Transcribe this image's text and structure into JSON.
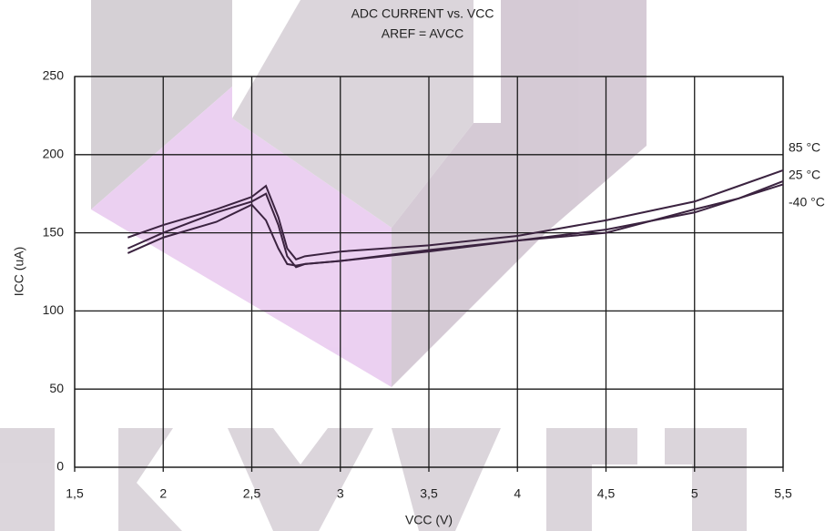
{
  "chart_data": {
    "type": "line",
    "title": "ADC CURRENT vs. VCC",
    "subtitle": "AREF = AVCC",
    "x_label": "VCC (V)",
    "y_label": "ICC (uA)",
    "x": [
      1.8,
      2.0,
      2.3,
      2.5,
      2.58,
      2.65,
      2.7,
      2.75,
      2.8,
      3.0,
      3.5,
      4.0,
      4.5,
      5.0,
      5.25,
      5.5
    ],
    "series": [
      {
        "name": "85 °C",
        "color": "#3b2340",
        "values": [
          147,
          155,
          165,
          173,
          180,
          160,
          140,
          133,
          135,
          138,
          142,
          148,
          158,
          170,
          180,
          190
        ]
      },
      {
        "name": "25 °C",
        "color": "#3b2340",
        "values": [
          140,
          150,
          163,
          170,
          175,
          155,
          135,
          128,
          130,
          132,
          139,
          145,
          152,
          163,
          172,
          183
        ]
      },
      {
        "name": "-40 °C",
        "color": "#3b2340",
        "values": [
          137,
          147,
          157,
          168,
          158,
          140,
          130,
          129,
          130,
          132,
          138,
          145,
          150,
          165,
          172,
          181
        ]
      }
    ],
    "xlim": [
      1.5,
      5.5
    ],
    "xticks": [
      {
        "value": 1.5,
        "label": "1,5"
      },
      2,
      {
        "value": 2.5,
        "label": "2,5"
      },
      3,
      {
        "value": 3.5,
        "label": "3,5"
      },
      4,
      {
        "value": 4.5,
        "label": "4,5"
      },
      5,
      {
        "value": 5.5,
        "label": "5,5"
      }
    ],
    "ylim": [
      0,
      250
    ],
    "yticks": [
      0,
      50,
      100,
      150,
      200,
      250
    ],
    "grid": true
  }
}
